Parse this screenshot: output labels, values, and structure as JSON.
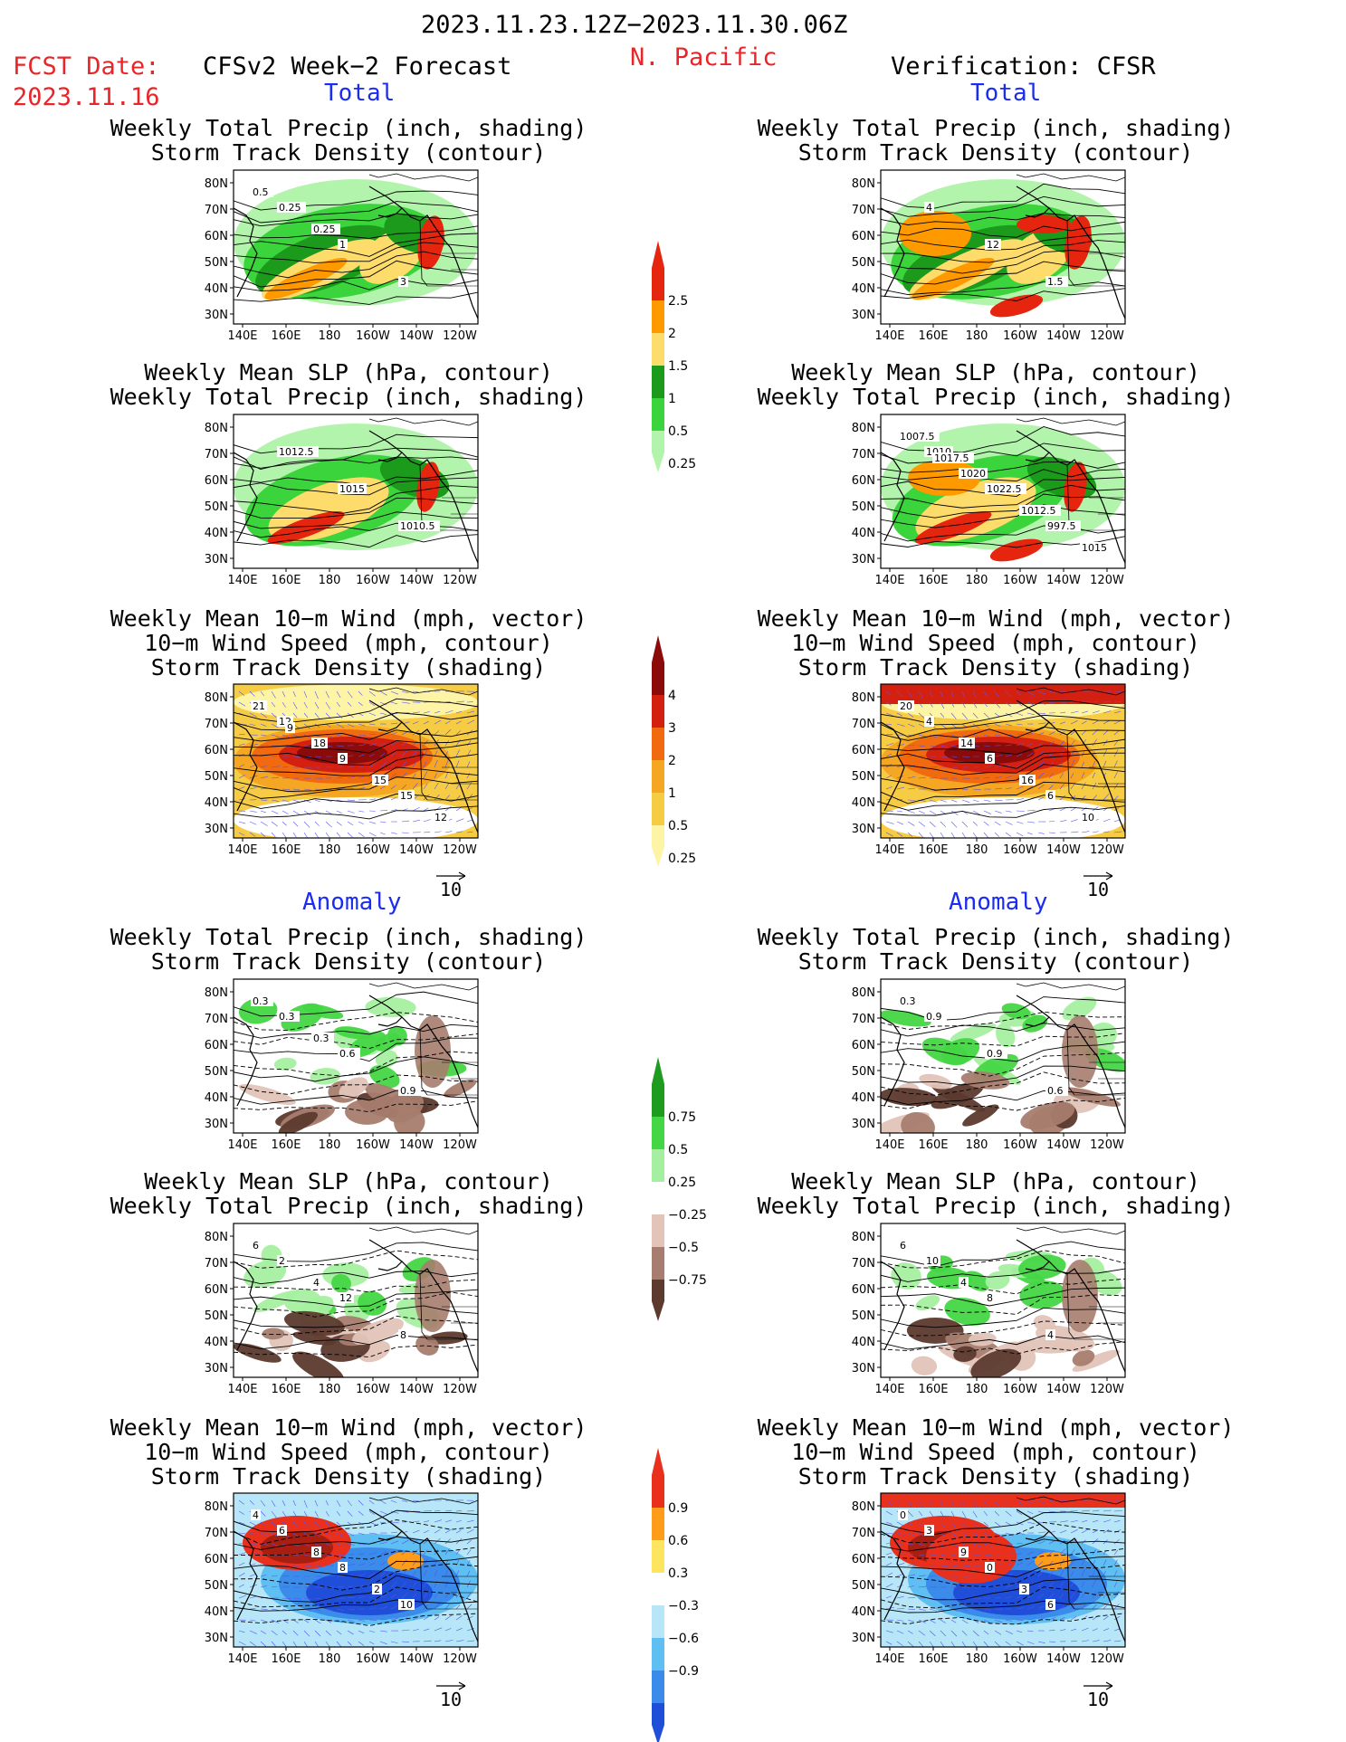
{
  "header": {
    "period": "2023.11.23.12Z−2023.11.30.06Z",
    "region": "N. Pacific",
    "fcst_label": "FCST Date:",
    "fcst_date": "2023.11.16",
    "left_title": "CFSv2 Week−2 Forecast",
    "right_title": "Verification: CFSR"
  },
  "sections": {
    "total": "Total",
    "anomaly": "Anomaly"
  },
  "titles": {
    "precip_track": [
      "Weekly Total Precip (inch, shading)",
      "Storm Track Density (contour)"
    ],
    "slp_precip": [
      "Weekly Mean SLP (hPa, contour)",
      "Weekly Total Precip (inch, shading)"
    ],
    "wind_track": [
      "Weekly Mean 10−m Wind (mph, vector)",
      "10−m Wind Speed (mph, contour)",
      "Storm Track Density (shading)"
    ]
  },
  "axes": {
    "lat_ticks": [
      "80N",
      "70N",
      "60N",
      "50N",
      "40N",
      "30N"
    ],
    "lon_ticks": [
      "140E",
      "160E",
      "180",
      "160W",
      "140W",
      "120W"
    ]
  },
  "vector_ref": "10",
  "colorbars": {
    "precip_total": {
      "labels": [
        "2.5",
        "2",
        "1.5",
        "1",
        "0.5",
        "0.25"
      ],
      "colors": [
        "#e6250f",
        "#ff9900",
        "#fddc6c",
        "#1c9a1c",
        "#3cd43c",
        "#b3f4ac"
      ]
    },
    "track_total": {
      "labels": [
        "4",
        "3",
        "2",
        "1",
        "0.5",
        "0.25"
      ],
      "colors": [
        "#8b0a0a",
        "#d42010",
        "#f26a10",
        "#f5a622",
        "#f7cc45",
        "#fdf4a6"
      ]
    },
    "precip_anom": {
      "labels": [
        "0.75",
        "0.5",
        "0.25",
        "−0.25",
        "−0.5",
        "−0.75"
      ],
      "colors": [
        "#1f9c1f",
        "#45d645",
        "#a5f0a0",
        "#ffffff",
        "#e2c4b8",
        "#a67d6e",
        "#5c3a2e"
      ]
    },
    "track_anom": {
      "labels": [
        "0.9",
        "0.6",
        "0.3",
        "−0.3",
        "−0.6",
        "−0.9"
      ],
      "colors": [
        "#e8301c",
        "#ff9c1a",
        "#fde560",
        "#ffffff",
        "#b6e6f7",
        "#5fbff2",
        "#3a8bea",
        "#1f4fd9"
      ]
    }
  },
  "panel_labels": {
    "fc_precip_total": [
      "0.25",
      "1",
      "3",
      "0.5",
      "0.25"
    ],
    "obs_precip_total": [
      "4",
      "12",
      "1.5"
    ],
    "fc_slp_total": [
      "1012.5",
      "1015",
      "1010.5"
    ],
    "obs_slp_total": [
      "1010",
      "1022.5",
      "997.5",
      "1007.5",
      "1020",
      "1012.5",
      "1015",
      "1017.5"
    ],
    "fc_wind_total": [
      "12",
      "9",
      "15",
      "21",
      "18",
      "15",
      "12",
      "9"
    ],
    "obs_wind_total": [
      "4",
      "6",
      "6",
      "20",
      "14",
      "16",
      "10"
    ],
    "fc_precip_anom": [
      "0.3",
      "0.6",
      "0.9",
      "0.3",
      "0.3"
    ],
    "obs_precip_anom": [
      "0.9",
      "0.9",
      "0.6",
      "0.3"
    ],
    "fc_slp_anom": [
      "2",
      "12",
      "8",
      "6",
      "4"
    ],
    "obs_slp_anom": [
      "10",
      "8",
      "4",
      "6",
      "4"
    ],
    "fc_wind_anom": [
      "6",
      "8",
      "10",
      "4",
      "8",
      "2"
    ],
    "obs_wind_anom": [
      "3",
      "0",
      "6",
      "0",
      "9",
      "3"
    ]
  }
}
